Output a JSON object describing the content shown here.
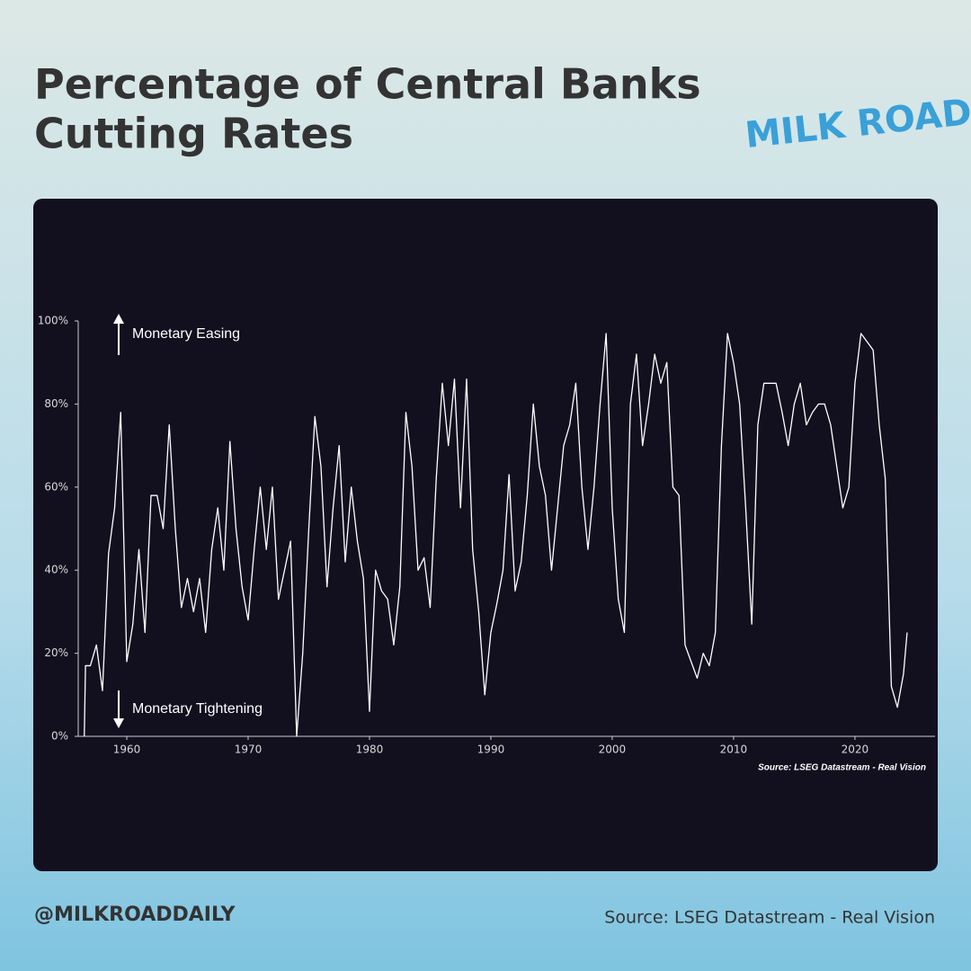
{
  "chart_data": {
    "type": "line",
    "title": [
      "Percentage of Central Banks",
      "Cutting Rates"
    ],
    "brand": "MILK ROAD",
    "handle": "@MILKROADDAILY",
    "footer_source": "Source: LSEG Datastream - Real Vision",
    "chart_source": "Source: LSEG Datastream - Real Vision",
    "annotations": [
      "Monetary Easing",
      "Monetary Tightening"
    ],
    "color": "#ffffff",
    "xlim": [
      1956,
      2026.6
    ],
    "ylim": [
      0,
      100
    ],
    "xticks": [
      1960,
      1970,
      1980,
      1990,
      2000,
      2010,
      2020
    ],
    "yticks": [
      {
        "value": 0,
        "label": "0%"
      },
      {
        "value": 20,
        "label": "20%"
      },
      {
        "value": 40,
        "label": "40%"
      },
      {
        "value": 60,
        "label": "60%"
      },
      {
        "value": 80,
        "label": "80%"
      },
      {
        "value": 100,
        "label": "100%"
      }
    ],
    "x": [
      1956.5,
      1956.6,
      1957,
      1957.5,
      1958,
      1958.5,
      1959,
      1959.5,
      1960,
      1960.5,
      1961,
      1961.5,
      1962,
      1962.5,
      1963,
      1963.5,
      1964,
      1964.5,
      1965,
      1965.5,
      1966,
      1966.5,
      1967,
      1967.5,
      1968,
      1968.5,
      1969,
      1969.5,
      1970,
      1970.5,
      1971,
      1971.5,
      1972,
      1972.5,
      1973,
      1973.5,
      1974,
      1974.5,
      1975,
      1975.5,
      1976,
      1976.5,
      1977,
      1977.5,
      1978,
      1978.5,
      1979,
      1979.5,
      1980,
      1980.5,
      1981,
      1981.5,
      1982,
      1982.5,
      1983,
      1983.5,
      1984,
      1984.5,
      1985,
      1985.5,
      1986,
      1986.5,
      1987,
      1987.5,
      1988,
      1988.5,
      1989,
      1989.5,
      1990,
      1990.5,
      1991,
      1991.5,
      1992,
      1992.5,
      1993,
      1993.5,
      1994,
      1994.5,
      1995,
      1995.5,
      1996,
      1996.5,
      1997,
      1997.5,
      1998,
      1998.5,
      1999,
      1999.5,
      2000,
      2000.5,
      2001,
      2001.5,
      2002,
      2002.5,
      2003,
      2003.5,
      2004,
      2004.5,
      2005,
      2005.5,
      2006,
      2006.5,
      2007,
      2007.5,
      2008,
      2008.5,
      2009,
      2009.5,
      2010,
      2010.5,
      2011,
      2011.5,
      2012,
      2012.5,
      2013,
      2013.5,
      2014,
      2014.5,
      2015,
      2015.5,
      2016,
      2016.5,
      2017,
      2017.5,
      2018,
      2018.5,
      2019,
      2019.5,
      2020,
      2020.5,
      2021,
      2021.5,
      2022,
      2022.5,
      2023,
      2023.5,
      2024,
      2024.3
    ],
    "values": [
      0,
      17,
      17,
      22,
      11,
      44,
      55,
      78,
      18,
      27,
      45,
      25,
      58,
      58,
      50,
      75,
      50,
      31,
      38,
      30,
      38,
      25,
      45,
      55,
      40,
      71,
      50,
      36,
      28,
      45,
      60,
      45,
      60,
      33,
      40,
      47,
      0,
      20,
      50,
      77,
      65,
      36,
      55,
      70,
      42,
      60,
      47,
      38,
      6,
      40,
      35,
      33,
      22,
      36,
      78,
      65,
      40,
      43,
      31,
      62,
      85,
      70,
      86,
      55,
      86,
      45,
      30,
      10,
      25,
      32,
      40,
      63,
      35,
      42,
      58,
      80,
      65,
      58,
      40,
      55,
      70,
      75,
      85,
      60,
      45,
      60,
      80,
      97,
      55,
      33,
      25,
      80,
      92,
      70,
      80,
      92,
      85,
      90,
      60,
      58,
      22,
      18,
      14,
      20,
      17,
      25,
      70,
      97,
      90,
      80,
      55,
      27,
      75,
      85,
      85,
      85,
      78,
      70,
      80,
      85,
      75,
      78,
      80,
      80,
      75,
      65,
      55,
      60,
      85,
      97,
      95,
      93,
      75,
      62,
      12,
      7,
      15,
      25
    ]
  }
}
